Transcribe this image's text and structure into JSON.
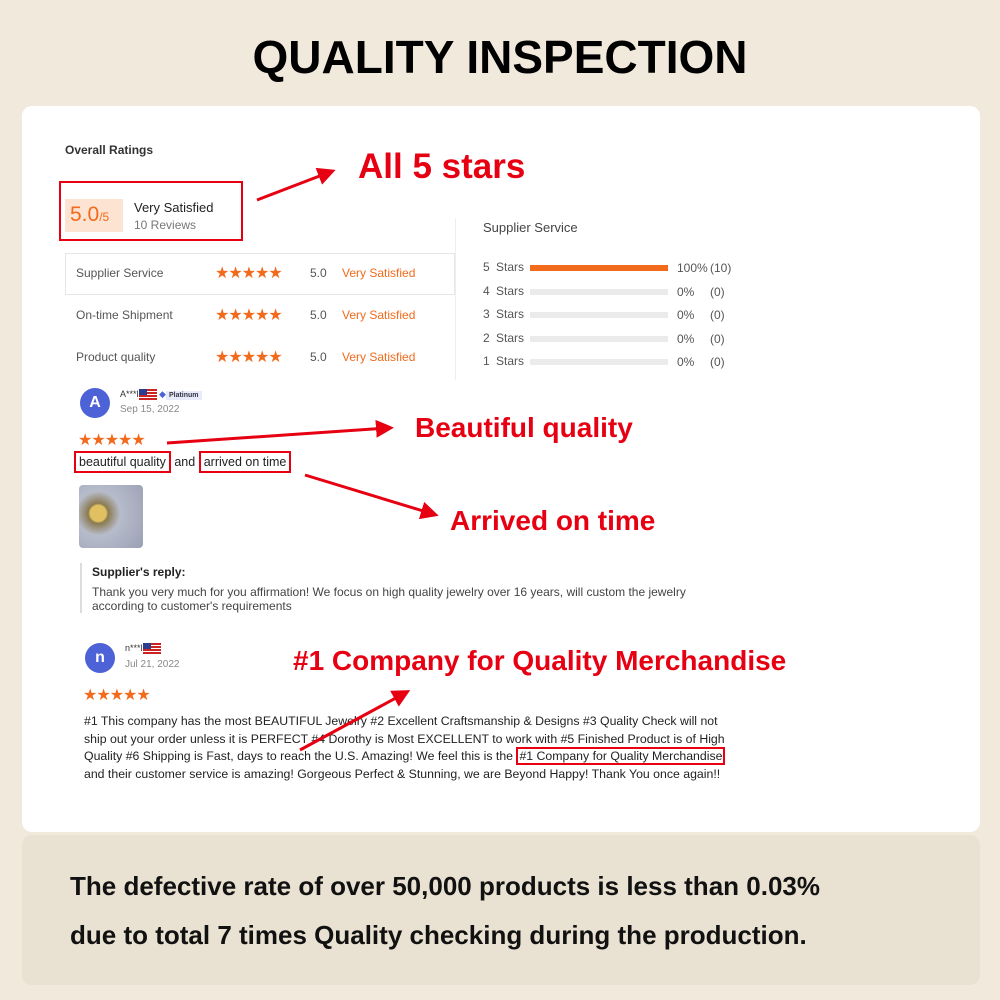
{
  "title": "QUALITY INSPECTION",
  "overall": {
    "heading": "Overall Ratings",
    "score": "5.0",
    "out_of": "/5",
    "label": "Very Satisfied",
    "reviews": "10 Reviews"
  },
  "categories": [
    {
      "name": "Supplier Service",
      "score": "5.0",
      "label": "Very Satisfied",
      "stars": 5
    },
    {
      "name": "On-time Shipment",
      "score": "5.0",
      "label": "Very Satisfied",
      "stars": 5
    },
    {
      "name": "Product quality",
      "score": "5.0",
      "label": "Very Satisfied",
      "stars": 5
    }
  ],
  "breakdown": {
    "heading": "Supplier Service",
    "rows": [
      {
        "label": "5 Stars",
        "percent": "100%",
        "count": "(10)",
        "fill": 100
      },
      {
        "label": "4 Stars",
        "percent": "0%",
        "count": "(0)",
        "fill": 0
      },
      {
        "label": "3 Stars",
        "percent": "0%",
        "count": "(0)",
        "fill": 0
      },
      {
        "label": "2 Stars",
        "percent": "0%",
        "count": "(0)",
        "fill": 0
      },
      {
        "label": "1 Stars",
        "percent": "0%",
        "count": "(0)",
        "fill": 0
      }
    ]
  },
  "reviews": [
    {
      "initial": "A",
      "name": "A***l",
      "badge": "Platinum",
      "date": "Sep 15, 2022",
      "stars": "★★★★★",
      "text_a": "beautiful quality",
      "text_b": "and",
      "text_c": "arrived on time",
      "reply_heading": "Supplier's reply:",
      "reply": "Thank you very much for you affirmation! We focus on high quality jewelry over 16 years, will custom the jewelry according to customer's requirements"
    },
    {
      "initial": "n",
      "name": "n***l",
      "date": "Jul 21, 2022",
      "stars": "★★★★★",
      "text_before": "#1 This company has the most BEAUTIFUL Jewelry #2 Excellent Craftsmanship & Designs #3 Quality Check will not ship out your order unless it is PERFECT #4 Dorothy is Most EXCELLENT to work with #5 Finished Product is of High Quality #6 Shipping is Fast, days to reach the U.S. Amazing! We feel this is the ",
      "text_highlight": "#1 Company for Quality Merchandise",
      "text_after": " and their customer service is amazing! Gorgeous Perfect & Stunning, we are Beyond Happy! Thank You once again!!"
    }
  ],
  "annotations": {
    "all_stars": "All 5 stars",
    "beautiful": "Beautiful quality",
    "arrived": "Arrived on time",
    "company": "#1 Company for Quality Merchandise"
  },
  "footer": {
    "line1": "The defective rate of over 50,000 products is less than 0.03%",
    "line2": "due to total 7 times Quality checking during the production."
  },
  "colors": {
    "accent": "#f26a1b",
    "annotation": "#e60012",
    "background": "#f1eadc"
  }
}
